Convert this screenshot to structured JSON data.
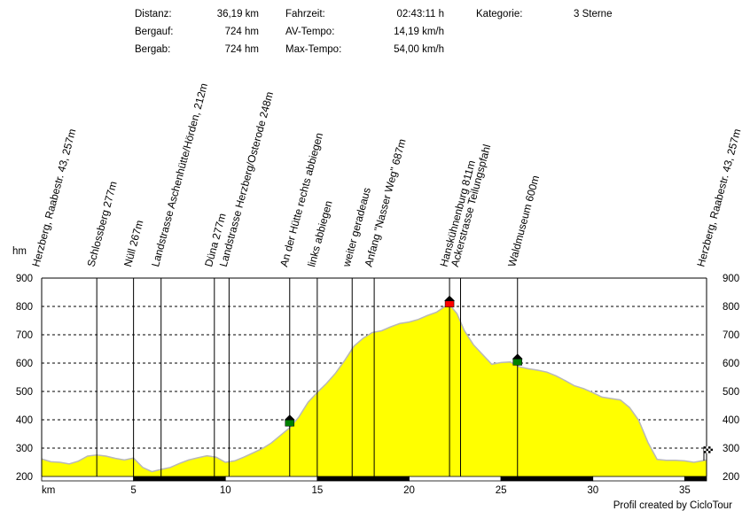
{
  "stats": {
    "distance_label": "Distanz:",
    "distance_value": "36,19 km",
    "ascent_label": "Bergauf:",
    "ascent_value": "724 hm",
    "descent_label": "Bergab:",
    "descent_value": "724 hm",
    "time_label": "Fahrzeit:",
    "time_value": "02:43:11 h",
    "avg_label": "AV-Tempo:",
    "avg_value": "14,19 km/h",
    "max_label": "Max-Tempo:",
    "max_value": "54,00 km/h",
    "category_label": "Kategorie:",
    "category_value": "3 Sterne"
  },
  "footer": "Profil created by CicloTour",
  "colors": {
    "fill": "#ffff00",
    "outline": "#b8b8b8",
    "grid": "#000000",
    "green": "#008000",
    "red": "#ff0000",
    "marker": "#000000"
  },
  "chart_data": {
    "type": "area",
    "xlabel": "km",
    "ylabel": "hm",
    "xlim": [
      0,
      36.19
    ],
    "ylim": [
      200,
      900
    ],
    "x_ticks": [
      5,
      10,
      15,
      20,
      25,
      30,
      35
    ],
    "y_ticks": [
      200,
      300,
      400,
      500,
      600,
      700,
      800,
      900
    ],
    "grid": true,
    "profile": {
      "x": [
        0,
        0.5,
        1,
        1.5,
        2,
        2.5,
        3,
        3.5,
        4,
        4.5,
        5,
        5.5,
        6,
        6.5,
        7,
        7.5,
        8,
        8.5,
        9,
        9.5,
        10,
        10.5,
        11,
        11.5,
        12,
        12.5,
        13,
        13.5,
        14,
        14.5,
        15,
        15.5,
        16,
        16.5,
        17,
        17.5,
        18,
        18.5,
        19,
        19.5,
        20,
        20.5,
        21,
        21.5,
        22,
        22.2,
        22.6,
        23,
        23.5,
        24,
        24.5,
        25,
        25.5,
        26,
        26.5,
        27,
        27.5,
        28,
        28.5,
        29,
        29.5,
        30,
        30.5,
        31,
        31.5,
        32,
        32.5,
        33,
        33.5,
        34,
        34.5,
        35,
        35.5,
        36.19
      ],
      "y": [
        262,
        252,
        250,
        244,
        254,
        272,
        276,
        272,
        264,
        258,
        265,
        232,
        217,
        225,
        232,
        246,
        258,
        266,
        273,
        268,
        250,
        255,
        268,
        283,
        298,
        318,
        345,
        372,
        410,
        462,
        497,
        528,
        565,
        610,
        660,
        688,
        708,
        714,
        728,
        740,
        745,
        754,
        768,
        780,
        802,
        806,
        775,
        715,
        665,
        630,
        596,
        602,
        604,
        587,
        580,
        575,
        568,
        555,
        538,
        520,
        510,
        496,
        480,
        475,
        470,
        443,
        398,
        320,
        260,
        257,
        257,
        255,
        250,
        258
      ]
    },
    "waypoints": [
      {
        "label": "Herzberg, Raabestr. 43, 257m",
        "km": 0.0
      },
      {
        "label": "Schlossberg 277m",
        "km": 3.0
      },
      {
        "label": "Nüll 267m",
        "km": 5.0
      },
      {
        "label": "Landstrasse Aschenhütte/Hörden, 212m",
        "km": 6.5
      },
      {
        "label": "Düna 277m",
        "km": 9.4
      },
      {
        "label": "Landstrasse Herzberg/Osterode 248m",
        "km": 10.2
      },
      {
        "label": "An der Hütte rechts abbiegen",
        "km": 13.5
      },
      {
        "label": "links abbiegen",
        "km": 15.0
      },
      {
        "label": "weiter geradeaus",
        "km": 16.9
      },
      {
        "label": "Anfang \"Nasser Weg\" 687m",
        "km": 18.1
      },
      {
        "label": "Hanskühnenburg 811m",
        "km": 22.2
      },
      {
        "label": "Ackerstrasse Teilungspfahl",
        "km": 22.8
      },
      {
        "label": "Waldmuseum 600m",
        "km": 25.9
      },
      {
        "label": "Herzberg, Raabestr. 43, 257m",
        "km": 36.19
      }
    ],
    "huts": [
      {
        "km": 13.5,
        "elev": 390,
        "color": "green"
      },
      {
        "km": 22.2,
        "elev": 810,
        "color": "red"
      },
      {
        "km": 25.9,
        "elev": 605,
        "color": "green"
      }
    ],
    "finish": {
      "km": 36.19,
      "elev": 262
    }
  }
}
